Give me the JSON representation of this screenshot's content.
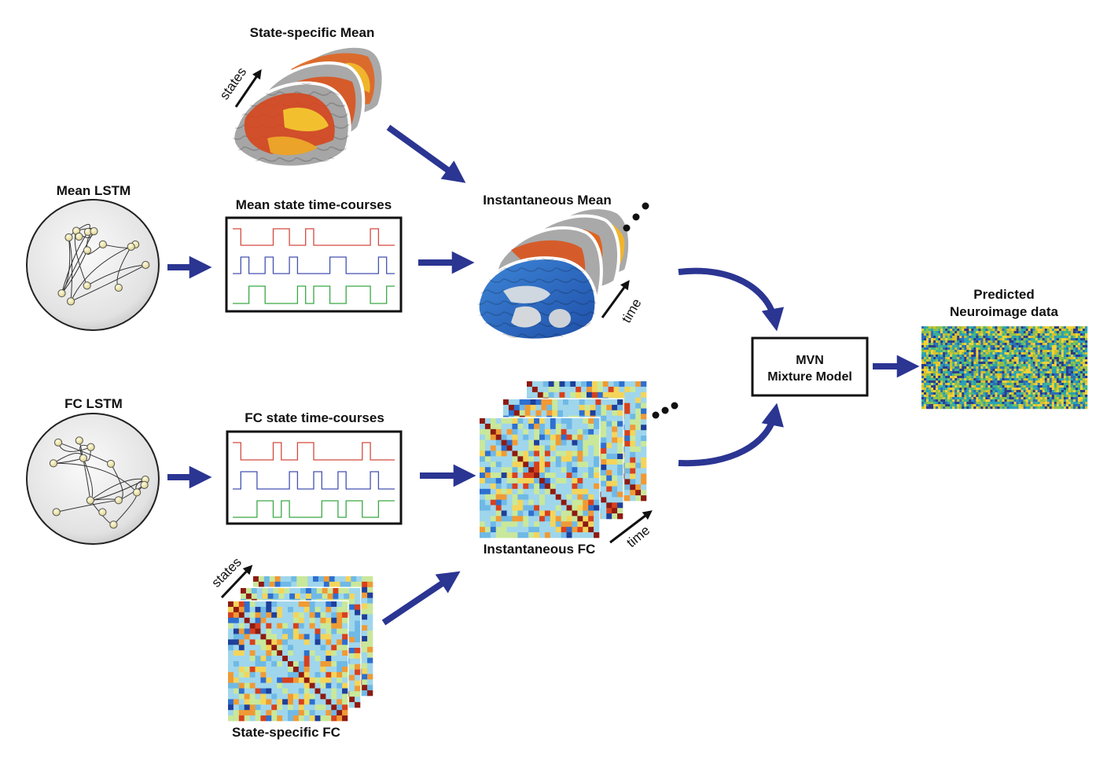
{
  "labels": {
    "state_specific_mean": "State-specific Mean",
    "mean_lstm": "Mean LSTM",
    "mean_timecourses": "Mean state time-courses",
    "instantaneous_mean": "Instantaneous Mean",
    "fc_lstm": "FC LSTM",
    "fc_timecourses": "FC state time-courses",
    "instantaneous_fc": "Instantaneous FC",
    "state_specific_fc": "State-specific FC",
    "mvn_line1": "MVN",
    "mvn_line2": "Mixture Model",
    "predicted_line1": "Predicted",
    "predicted_line2": "Neuroimage data",
    "states": "states",
    "time": "time"
  },
  "colors": {
    "arrow": "#2b3592",
    "trace_red": "#d24b3f",
    "trace_blue": "#4352b0",
    "trace_green": "#3aa845",
    "brain_gray": "#9c9c9c",
    "activation_orange": "#e25a1c",
    "activation_yellow": "#f2c02f",
    "brain_blue": "#2f6fc8",
    "node_fill": "#f3ecb3"
  },
  "timecourses": {
    "mean": {
      "red": [
        1,
        0,
        0,
        0,
        0,
        1,
        1,
        0,
        0,
        1,
        0,
        0,
        0,
        0,
        0,
        0,
        0,
        1,
        0,
        0
      ],
      "blue": [
        0,
        1,
        0,
        0,
        1,
        0,
        0,
        1,
        0,
        0,
        0,
        0,
        1,
        1,
        0,
        0,
        0,
        0,
        1,
        0
      ],
      "green": [
        0,
        0,
        1,
        1,
        0,
        0,
        0,
        0,
        1,
        0,
        1,
        1,
        0,
        0,
        1,
        1,
        1,
        0,
        0,
        1
      ]
    },
    "fc": {
      "red": [
        1,
        0,
        0,
        0,
        0,
        1,
        0,
        0,
        1,
        1,
        0,
        0,
        0,
        0,
        0,
        0,
        1,
        0,
        0,
        0
      ],
      "blue": [
        0,
        1,
        1,
        0,
        0,
        0,
        0,
        1,
        0,
        0,
        1,
        0,
        0,
        1,
        0,
        0,
        0,
        1,
        0,
        0
      ],
      "green": [
        0,
        0,
        0,
        1,
        1,
        0,
        1,
        0,
        0,
        0,
        0,
        1,
        1,
        0,
        1,
        1,
        0,
        0,
        1,
        1
      ]
    }
  }
}
